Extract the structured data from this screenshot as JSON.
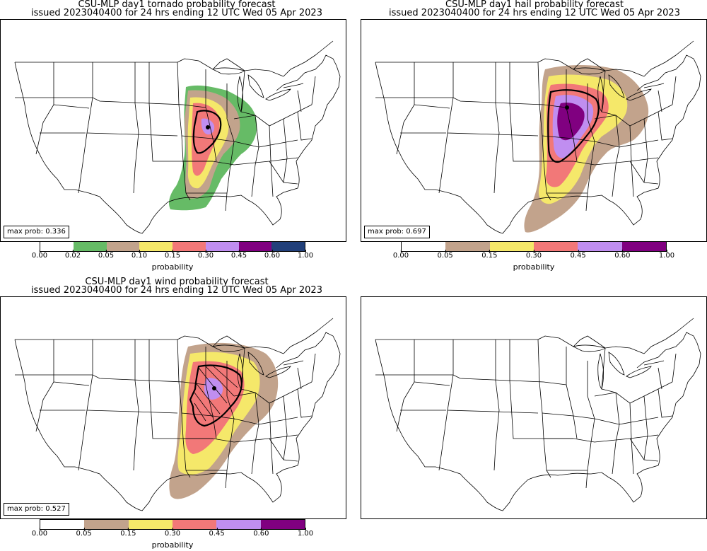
{
  "panels": [
    {
      "title_line1": "CSU-MLP day1 tornado probability forecast",
      "title_line2": "issued 2023040400 for 24 hrs ending 12 UTC Wed 05 Apr 2023",
      "max_prob": "max prob: 0.336",
      "colorbar": {
        "colors": [
          "#ffffff",
          "#66bb66",
          "#c2a38c",
          "#f5e86a",
          "#f27878",
          "#c08ef0",
          "#800080",
          "#22407a"
        ],
        "ticks": [
          "0.00",
          "0.02",
          "0.05",
          "0.10",
          "0.15",
          "0.30",
          "0.45",
          "0.60",
          "1.00"
        ],
        "label": "probability"
      }
    },
    {
      "title_line1": "CSU-MLP day1 hail probability forecast",
      "title_line2": "issued 2023040400 for 24 hrs ending 12 UTC Wed 05 Apr 2023",
      "max_prob": "max prob: 0.697",
      "colorbar": {
        "colors": [
          "#ffffff",
          "#c2a38c",
          "#f5e86a",
          "#f27878",
          "#c08ef0",
          "#800080"
        ],
        "ticks": [
          "0.00",
          "0.05",
          "0.15",
          "0.30",
          "0.45",
          "0.60",
          "1.00"
        ],
        "label": "probability"
      }
    },
    {
      "title_line1": "CSU-MLP day1 wind probability forecast",
      "title_line2": "issued 2023040400 for 24 hrs ending 12 UTC Wed 05 Apr 2023",
      "max_prob": "max prob: 0.527",
      "colorbar": {
        "colors": [
          "#ffffff",
          "#c2a38c",
          "#f5e86a",
          "#f27878",
          "#c08ef0",
          "#800080"
        ],
        "ticks": [
          "0.00",
          "0.05",
          "0.15",
          "0.30",
          "0.45",
          "0.60",
          "1.00"
        ],
        "label": "probability"
      }
    },
    {
      "title_line1": "",
      "title_line2": ""
    }
  ]
}
